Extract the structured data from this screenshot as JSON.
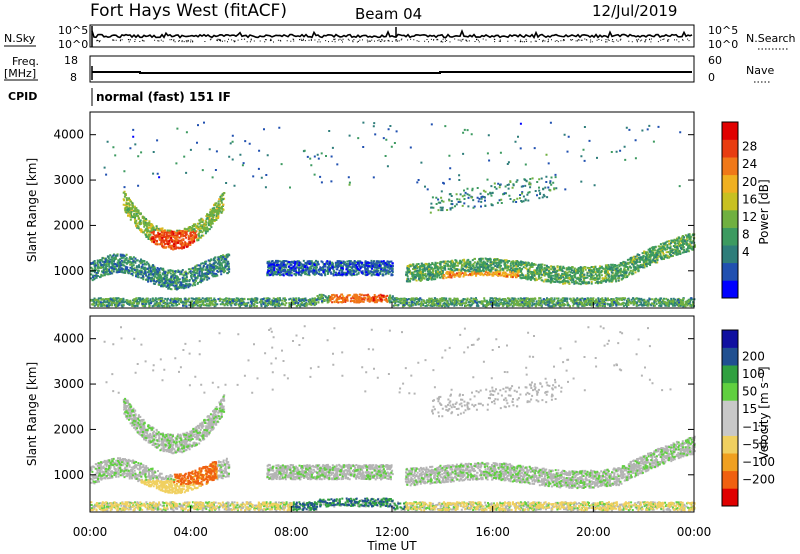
{
  "header": {
    "station": "Fort Hays West (fitACF)",
    "beam": "Beam 04",
    "date": "12/Jul/2019"
  },
  "strip_panels": {
    "nsky": {
      "label": "N.Sky",
      "ticks": [
        "10^5",
        "10^0"
      ]
    },
    "nsearch": {
      "label": "N.Search",
      "ticks": [
        "10^5",
        "10^0"
      ]
    },
    "freq": {
      "label_line1": "Freq.",
      "label_line2": "[MHz]",
      "ticks": [
        "18",
        "8"
      ]
    },
    "nave": {
      "label": "Nave",
      "ticks": [
        "60",
        "0"
      ]
    },
    "cpid": {
      "label": "CPID",
      "text": "normal (fast) 151 IF"
    }
  },
  "chart_data": [
    {
      "type": "heatmap",
      "panel": "power",
      "xlabel": "",
      "ylabel": "Slant Range [km]",
      "xlim": [
        0,
        24
      ],
      "ylim": [
        180,
        4500
      ],
      "yticks": [
        "4000",
        "3000",
        "2000",
        "1000"
      ],
      "ytick_values": [
        4000,
        3000,
        2000,
        1000
      ],
      "colorbar": {
        "label": "Power [dB]",
        "ticks": [
          "28",
          "24",
          "20",
          "16",
          "12",
          "8",
          "4"
        ],
        "colors": [
          "#0000ff",
          "#2050b0",
          "#2e7d7a",
          "#3c9a60",
          "#70b040",
          "#c8c020",
          "#f0b020",
          "#f07818",
          "#e83c10",
          "#e00000"
        ]
      },
      "features": [
        {
          "name": "arc",
          "t": [
            1.3,
            5.5
          ],
          "r_center": 1750,
          "value": "26"
        },
        {
          "name": "band-1",
          "t": [
            0.0,
            5.5
          ],
          "r_center": 1000,
          "value": "10"
        },
        {
          "name": "band-2",
          "t": [
            7.0,
            12.0
          ],
          "r_center": 1100,
          "value": "8"
        },
        {
          "name": "band-3",
          "t": [
            12.5,
            24.0
          ],
          "r_center": 1000,
          "value": "12"
        },
        {
          "name": "ground",
          "t": [
            0.0,
            24.0
          ],
          "r_center": 350,
          "value": "14"
        }
      ]
    },
    {
      "type": "heatmap",
      "panel": "velocity",
      "xlabel": "Time UT",
      "ylabel": "Slant Range [km]",
      "xlim": [
        0,
        24
      ],
      "ylim": [
        180,
        4500
      ],
      "xticks": [
        "00:00",
        "04:00",
        "08:00",
        "12:00",
        "16:00",
        "20:00",
        "00:00"
      ],
      "xtick_values": [
        0,
        4,
        8,
        12,
        16,
        20,
        24
      ],
      "yticks": [
        "4000",
        "3000",
        "2000",
        "1000"
      ],
      "ytick_values": [
        4000,
        3000,
        2000,
        1000
      ],
      "colorbar": {
        "label": "Velocity [m s⁻¹]",
        "ticks": [
          "200",
          "100",
          "50",
          "15",
          "−15",
          "−50",
          "−100",
          "−200"
        ],
        "colors": [
          "#e00000",
          "#f06010",
          "#f0a020",
          "#f0d060",
          "#c8c8c8",
          "#c8c8c8",
          "#60d040",
          "#30a040",
          "#205090",
          "#1010a0"
        ]
      }
    }
  ],
  "colors": {
    "frame": "#000000",
    "ground_scatter": "#b4b4b4"
  }
}
